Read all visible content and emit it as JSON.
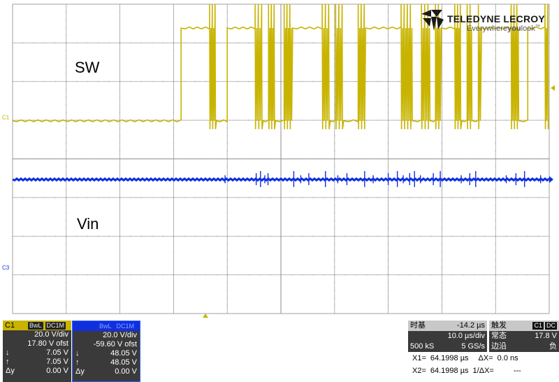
{
  "logo": {
    "brand": "TELEDYNE LECROY",
    "tagline_1": "Everywhere",
    "tagline_2": "you",
    "tagline_3": "look",
    "tm": "™"
  },
  "trace_labels": {
    "sw": "SW",
    "vin": "Vin",
    "c1_marker": "C1",
    "c3_marker": "C3"
  },
  "colors": {
    "grid_bg": "#ffffff",
    "grid_line": "#a0a0a0",
    "c1": "#c8b400",
    "c3": "#1030e0",
    "panel_bg": "#3a3a3a"
  },
  "channels": [
    {
      "name": "C1",
      "header_color": "#c8b400",
      "tags": [
        "BwL",
        "DC1M"
      ],
      "volts_div": "20.0 V/div",
      "offset": "17.80 V ofst",
      "down_sym": "↓",
      "down_val": "7.05 V",
      "up_sym": "↑",
      "up_val": "7.05 V",
      "dy_sym": "Δy",
      "dy_val": "0.00 V"
    },
    {
      "name": "",
      "header_color": "#1030e0",
      "tags": [
        "BwL",
        "DC1M"
      ],
      "volts_div": "20.0 V/div",
      "offset": "-59.60 V ofst",
      "down_sym": "↓",
      "down_val": "48.05 V",
      "up_sym": "↑",
      "up_val": "48.05 V",
      "dy_sym": "Δy",
      "dy_val": "0.00 V"
    }
  ],
  "timebase": {
    "label": "时基",
    "delay": "-14.2 µs",
    "per_div": "10.0 µs/div",
    "samples": "500 kS",
    "rate": "5 GS/s"
  },
  "trigger": {
    "label": "触发",
    "src": "C1",
    "coupling": "DC",
    "mode": "常态",
    "level": "17.8 V",
    "edge": "边沿",
    "slope": "负"
  },
  "cursors": {
    "x1_label": "X1=",
    "x1": "64.1998 µs",
    "dx_label": "ΔX=",
    "dx": "0.0 ns",
    "x2_label": "X2=",
    "x2": "64.1998 µs",
    "inv_dx_label": "1/ΔX=",
    "inv_dx": "---"
  },
  "chart_data": {
    "type": "line",
    "title": "",
    "xlabel": "",
    "ylabel": "",
    "grid": true,
    "divisions": {
      "x": 10,
      "y": 8
    },
    "x_unit": "µs",
    "xlim": [
      -64.2,
      35.8
    ],
    "series": [
      {
        "name": "SW",
        "channel": "C1",
        "color": "#c8b400",
        "volts_per_div": 20.0,
        "low_V": 0,
        "high_V": 48,
        "segments": [
          {
            "from": -64.2,
            "to": -32.8,
            "level": "low"
          },
          {
            "from": -32.8,
            "to": -27.5,
            "level": "high"
          },
          {
            "from": -27.5,
            "to": -26.2,
            "level": "switching"
          },
          {
            "from": -26.2,
            "to": -24.2,
            "level": "low"
          },
          {
            "from": -24.2,
            "to": -19.0,
            "level": "high"
          },
          {
            "from": -19.0,
            "to": -17.5,
            "level": "switching"
          },
          {
            "from": -17.5,
            "to": -16.5,
            "level": "low"
          },
          {
            "from": -16.5,
            "to": -15.2,
            "level": "switching"
          },
          {
            "from": -15.2,
            "to": -13.6,
            "level": "low"
          },
          {
            "from": -13.6,
            "to": -12.0,
            "level": "switching"
          },
          {
            "from": -12.0,
            "to": -6.5,
            "level": "high"
          },
          {
            "from": -6.5,
            "to": -5.0,
            "level": "switching"
          },
          {
            "from": -5.0,
            "to": -4.0,
            "level": "low"
          },
          {
            "from": -4.0,
            "to": -2.5,
            "level": "switching"
          },
          {
            "from": -2.5,
            "to": 0.2,
            "level": "low"
          },
          {
            "from": 0.2,
            "to": 1.6,
            "level": "switching"
          },
          {
            "from": 1.6,
            "to": 8.2,
            "level": "high"
          },
          {
            "from": 8.2,
            "to": 10.5,
            "level": "switching"
          },
          {
            "from": 10.5,
            "to": 12.0,
            "level": "low"
          },
          {
            "from": 12.0,
            "to": 13.8,
            "level": "switching"
          },
          {
            "from": 13.8,
            "to": 14.6,
            "level": "low"
          },
          {
            "from": 14.6,
            "to": 15.7,
            "level": "switching"
          },
          {
            "from": 15.7,
            "to": 18.2,
            "level": "high"
          },
          {
            "from": 18.2,
            "to": 19.5,
            "level": "switching"
          },
          {
            "from": 19.5,
            "to": 20.5,
            "level": "low"
          },
          {
            "from": 20.5,
            "to": 21.6,
            "level": "switching"
          },
          {
            "from": 21.6,
            "to": 22.6,
            "level": "low"
          },
          {
            "from": 22.6,
            "to": 23.2,
            "level": "switching"
          },
          {
            "from": 23.2,
            "to": 28.7,
            "level": "high"
          },
          {
            "from": 28.7,
            "to": 30.3,
            "level": "switching"
          },
          {
            "from": 30.3,
            "to": 31.8,
            "level": "low"
          },
          {
            "from": 31.8,
            "to": 35.0,
            "level": "high"
          },
          {
            "from": 35.0,
            "to": 35.8,
            "level": "switching"
          }
        ]
      },
      {
        "name": "Vin",
        "channel": "C3",
        "color": "#1030e0",
        "volts_per_div": 20.0,
        "level_V": 48.05,
        "glitch_times": [
          -24.6,
          -18.8,
          -18.0,
          -17.2,
          -16.6,
          -11.8,
          -10.5,
          -9.0,
          -5.9,
          -3.6,
          -1.9,
          1.4,
          3.0,
          5.8,
          7.5,
          8.6,
          9.8,
          10.7,
          11.8,
          14.2,
          15.5,
          19.4,
          21.0,
          22.1,
          27.8,
          29.6,
          31.2,
          34.2
        ]
      }
    ]
  }
}
